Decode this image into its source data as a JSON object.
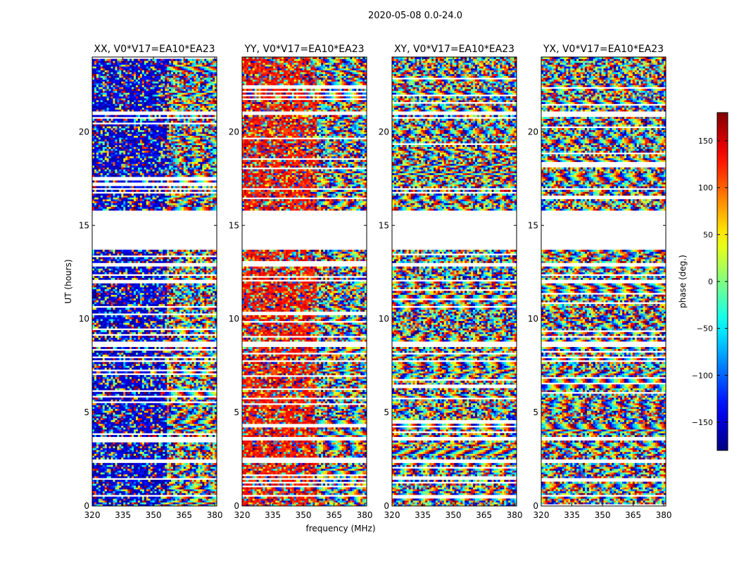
{
  "figure_title": "2020-05-08 0.0-24.0",
  "chart_data": {
    "type": "heatmap",
    "suptitle": "2020-05-08 0.0-24.0",
    "xlabel": "frequency (MHz)",
    "ylabel": "UT (hours)",
    "xlim": [
      320,
      381
    ],
    "ylim": [
      0,
      24
    ],
    "xticks": [
      320,
      335,
      350,
      365,
      380
    ],
    "yticks": [
      0,
      5,
      10,
      15,
      20
    ],
    "panels": [
      {
        "title": "XX, V0*V17=EA10*EA23",
        "tint_phase": -150
      },
      {
        "title": "YY, V0*V17=EA10*EA23",
        "tint_phase": 130
      },
      {
        "title": "XY, V0*V17=EA10*EA23",
        "tint_phase": null
      },
      {
        "title": "YX, V0*V17=EA10*EA23",
        "tint_phase": null
      }
    ],
    "colorbar": {
      "label": "phase (deg.)",
      "range": [
        -180,
        180
      ],
      "ticks": [
        -150,
        -100,
        -50,
        0,
        50,
        100,
        150
      ],
      "tick_labels": [
        "−150",
        "−100",
        "−50",
        "0",
        "50",
        "100",
        "150"
      ],
      "colormap": "jet"
    },
    "gaps_hours": [
      [
        0.45,
        0.55
      ],
      [
        1.4,
        1.55
      ],
      [
        2.3,
        2.5
      ],
      [
        3.55,
        3.7
      ],
      [
        7.65,
        7.75
      ],
      [
        8.55,
        8.85
      ],
      [
        12.0,
        12.1
      ],
      [
        12.8,
        13.0
      ],
      [
        13.7,
        15.8
      ],
      [
        16.9,
        17.0
      ],
      [
        20.9,
        21.1
      ]
    ],
    "blank_rows_hours": [
      [
        13.7,
        15.8
      ]
    ],
    "cadence_rows": 240,
    "cadence_cols": 60
  }
}
